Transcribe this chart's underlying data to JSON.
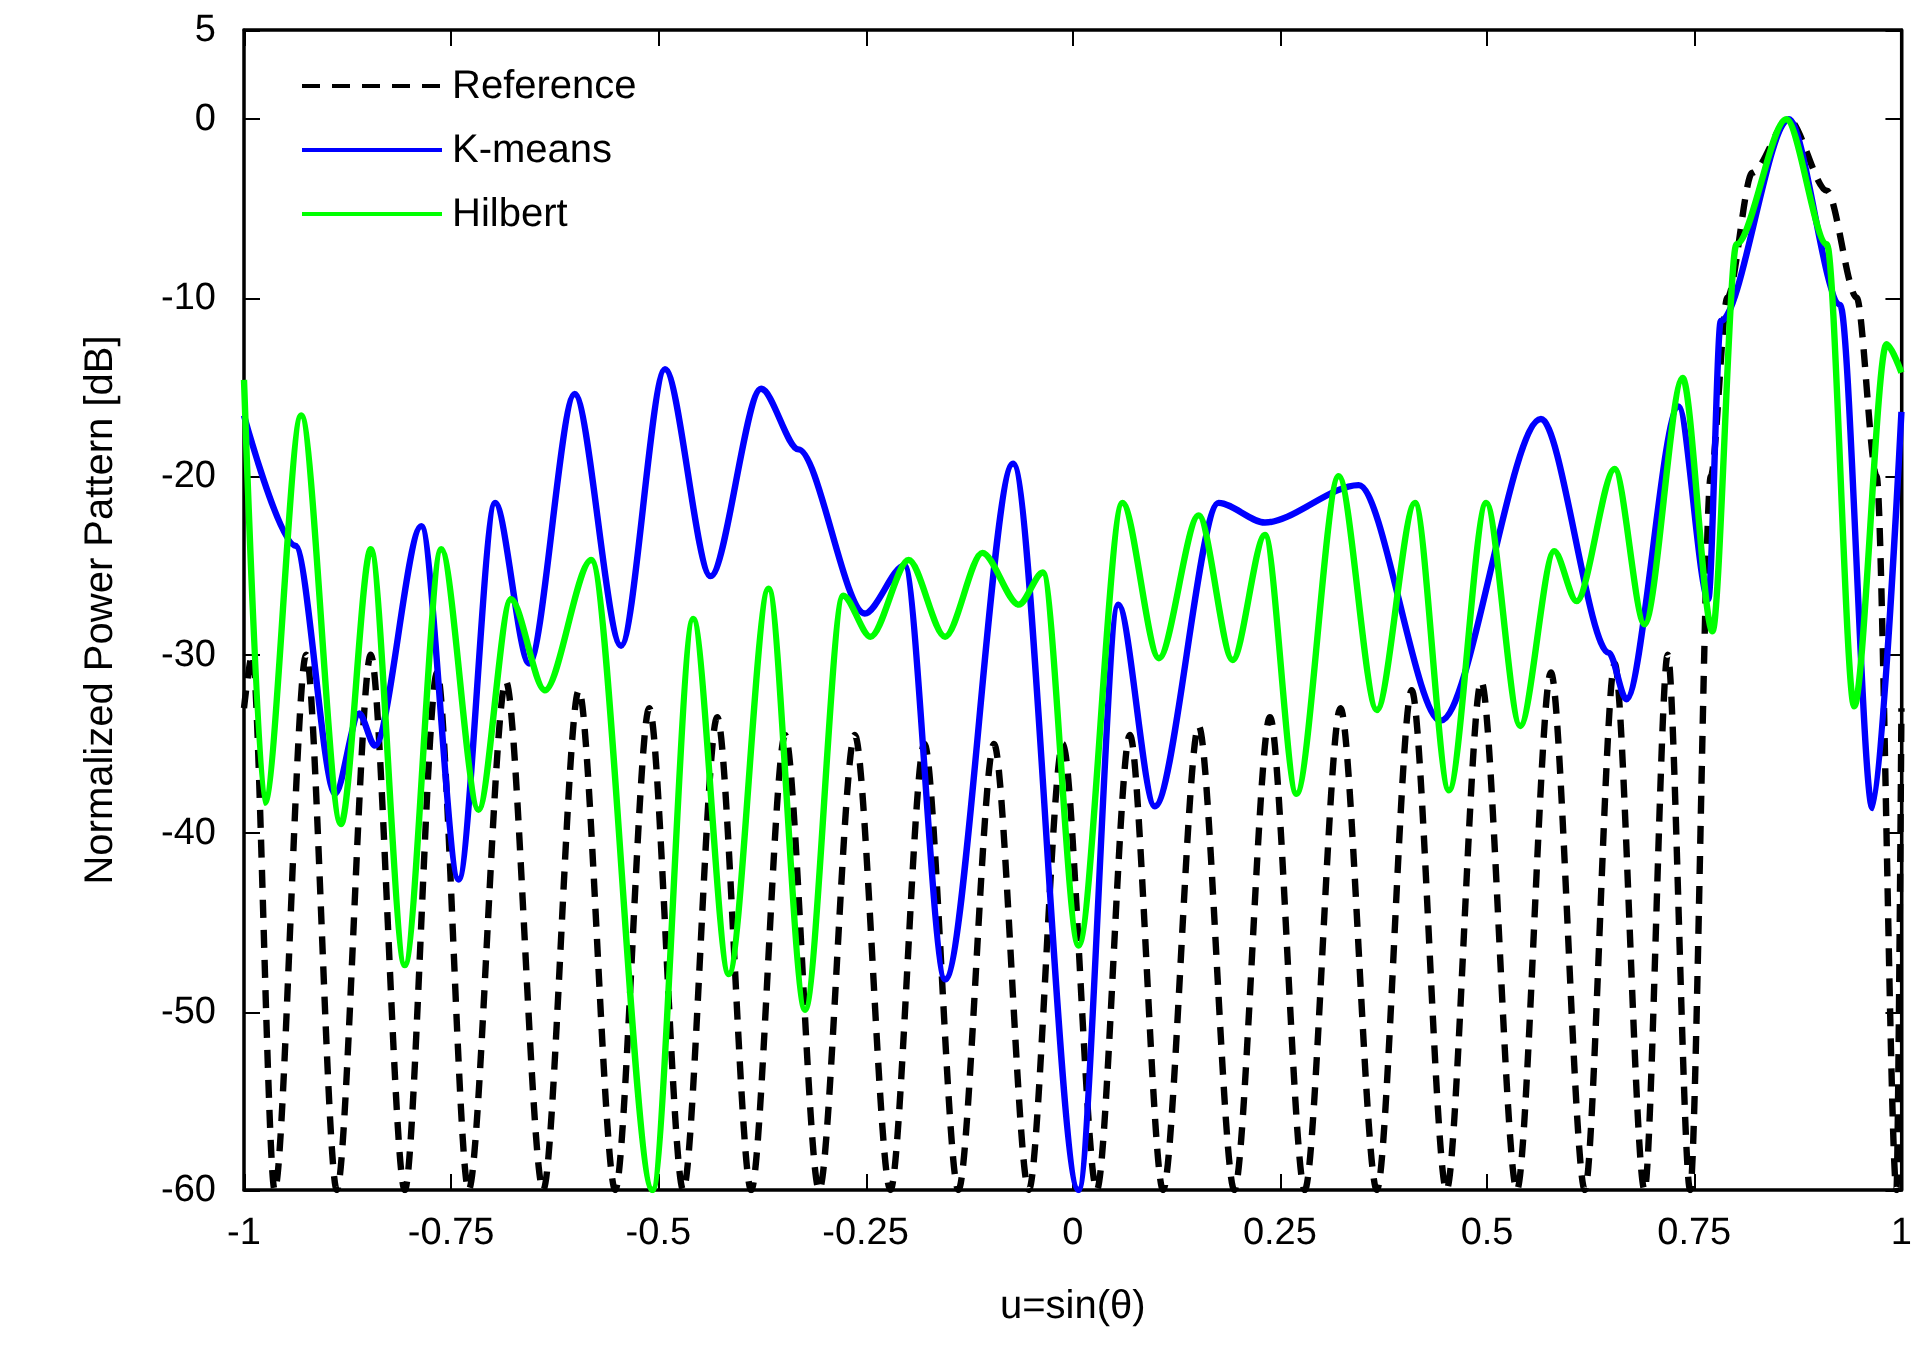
{
  "chart_data": {
    "type": "line",
    "xlabel": "u=sin(θ)",
    "ylabel": "Normalized Power Pattern [dB]",
    "xlim": [
      -1,
      1
    ],
    "xticks": [
      {
        "value": -1,
        "label": "-1"
      },
      {
        "value": -0.75,
        "label": "-0.75"
      },
      {
        "value": -0.5,
        "label": "-0.5"
      },
      {
        "value": -0.25,
        "label": "-0.25"
      },
      {
        "value": 0,
        "label": "0"
      },
      {
        "value": 0.25,
        "label": "0.25"
      },
      {
        "value": 0.5,
        "label": "0.5"
      },
      {
        "value": 0.75,
        "label": "0.75"
      },
      {
        "value": 1,
        "label": "1"
      }
    ],
    "ylim": [
      -60,
      5
    ],
    "yticks": [
      -60,
      -50,
      -40,
      -30,
      -20,
      -10,
      0,
      5
    ],
    "grid": false,
    "legend": "top left",
    "marker": "none",
    "series": [
      {
        "name": "Reference",
        "color": "#000000",
        "line_style": "dashed",
        "x": [
          -1,
          -0.99,
          -0.963,
          -0.925,
          -0.888,
          -0.847,
          -0.806,
          -0.767,
          -0.729,
          -0.684,
          -0.639,
          -0.596,
          -0.552,
          -0.511,
          -0.47,
          -0.429,
          -0.388,
          -0.347,
          -0.306,
          -0.263,
          -0.22,
          -0.179,
          -0.138,
          -0.095,
          -0.053,
          -0.012,
          0.029,
          0.069,
          0.109,
          0.152,
          0.195,
          0.238,
          0.28,
          0.323,
          0.367,
          0.409,
          0.451,
          0.493,
          0.536,
          0.577,
          0.618,
          0.654,
          0.69,
          0.718,
          0.745,
          0.77,
          0.79,
          0.82,
          0.864,
          0.91,
          0.946,
          0.97,
          0.994,
          1
        ],
        "values": [
          -33,
          -30,
          -60,
          -30,
          -60,
          -30,
          -60,
          -31,
          -60,
          -31.5,
          -60,
          -32,
          -60,
          -33,
          -60,
          -33.5,
          -60,
          -34.5,
          -60,
          -34.5,
          -60,
          -35,
          -60,
          -35,
          -60,
          -35,
          -60,
          -34.5,
          -60,
          -34,
          -60,
          -33.5,
          -60,
          -33,
          -60,
          -32,
          -60,
          -31.5,
          -60,
          -31,
          -60,
          -30.5,
          -60,
          -30,
          -60,
          -20,
          -10,
          -3,
          0,
          -4,
          -10,
          -20,
          -60,
          -33
        ]
      },
      {
        "name": "K-means",
        "color": "#0000ff",
        "line_style": "solid",
        "x": [
          -1,
          -0.938,
          -0.89,
          -0.861,
          -0.842,
          -0.786,
          -0.741,
          -0.697,
          -0.656,
          -0.601,
          -0.545,
          -0.492,
          -0.437,
          -0.376,
          -0.331,
          -0.251,
          -0.203,
          -0.154,
          -0.072,
          0.007,
          0.055,
          0.099,
          0.176,
          0.232,
          0.345,
          0.444,
          0.565,
          0.647,
          0.668,
          0.731,
          0.767,
          0.782,
          0.864,
          0.926,
          0.965,
          1
        ],
        "values": [
          -16.6,
          -23.9,
          -37.8,
          -33.3,
          -35.1,
          -22.8,
          -42.6,
          -21.5,
          -30.5,
          -15.4,
          -29.5,
          -14,
          -25.6,
          -15.1,
          -18.5,
          -27.7,
          -25,
          -48.2,
          -19.3,
          -60,
          -27.2,
          -38.5,
          -21.5,
          -22.6,
          -20.5,
          -33.7,
          -16.8,
          -29.9,
          -32.5,
          -16.1,
          -26.9,
          -11.3,
          0,
          -10.4,
          -38.6,
          -16.4
        ]
      },
      {
        "name": "Hilbert",
        "color": "#00ff00",
        "line_style": "solid",
        "x": [
          -1,
          -0.975,
          -0.931,
          -0.883,
          -0.847,
          -0.806,
          -0.762,
          -0.717,
          -0.678,
          -0.637,
          -0.581,
          -0.507,
          -0.458,
          -0.415,
          -0.367,
          -0.323,
          -0.277,
          -0.244,
          -0.198,
          -0.154,
          -0.109,
          -0.065,
          -0.036,
          0.007,
          0.06,
          0.104,
          0.152,
          0.193,
          0.232,
          0.27,
          0.321,
          0.367,
          0.413,
          0.454,
          0.499,
          0.54,
          0.581,
          0.608,
          0.654,
          0.69,
          0.736,
          0.772,
          0.801,
          0.861,
          0.91,
          0.943,
          0.982,
          1
        ],
        "values": [
          -14.6,
          -38.3,
          -16.6,
          -39.5,
          -24.1,
          -47.4,
          -24.1,
          -38.7,
          -26.9,
          -32,
          -24.7,
          -60,
          -28,
          -47.9,
          -26.3,
          -49.9,
          -26.7,
          -29,
          -24.7,
          -29,
          -24.3,
          -27.2,
          -25.4,
          -46.3,
          -21.5,
          -30.2,
          -22.2,
          -30.3,
          -23.3,
          -37.8,
          -20,
          -33.1,
          -21.5,
          -37.6,
          -21.5,
          -34,
          -24.2,
          -27,
          -19.6,
          -28.3,
          -14.5,
          -28.7,
          -7,
          0,
          -7,
          -32.9,
          -12.6,
          -14.2
        ]
      }
    ]
  }
}
